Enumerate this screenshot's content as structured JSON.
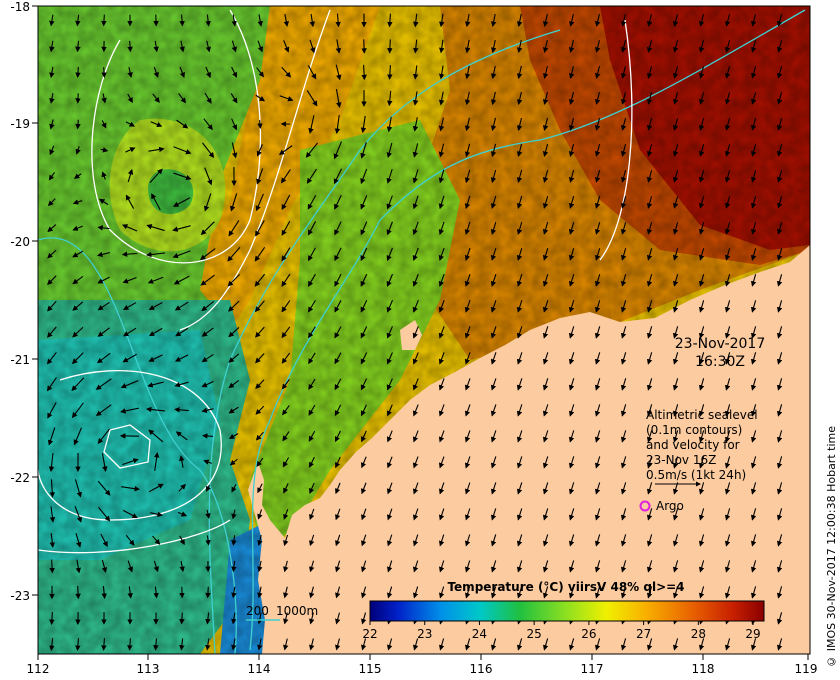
{
  "map": {
    "lon_ticks": [
      "112",
      "113",
      "114",
      "115",
      "116",
      "117",
      "118",
      "119"
    ],
    "lat_ticks": [
      "-18",
      "-19",
      "-20",
      "-21",
      "-22",
      "-23"
    ],
    "lon_range": [
      112,
      119
    ],
    "lat_range": [
      -23.55,
      -18.0
    ]
  },
  "stamp": {
    "date": "23-Nov-2017",
    "time": "16:30Z"
  },
  "note": {
    "lines": [
      "Altimetric sealevel",
      "(0.1m contours)",
      "and velocity for",
      "23-Nov 16Z",
      "0.5m/s (1kt 24h)"
    ]
  },
  "argo_label": "Argo",
  "bathy_legend": {
    "label_200": "200",
    "label_1000": "1000m"
  },
  "colorbar": {
    "title": "Temperature (°C) viirsV 48% ql>=4",
    "ticks": [
      "22",
      "23",
      "24",
      "25",
      "26",
      "27",
      "28",
      "29"
    ],
    "range": [
      22,
      29.2
    ]
  },
  "colors": {
    "land": "#fccb9f",
    "bathy_200": "#3fd0d0",
    "bathy_1000": "#ffffff",
    "argo": "#e020e0"
  },
  "credit": "© IMOS 30-Nov-2017 12:00:38 Hobart time"
}
